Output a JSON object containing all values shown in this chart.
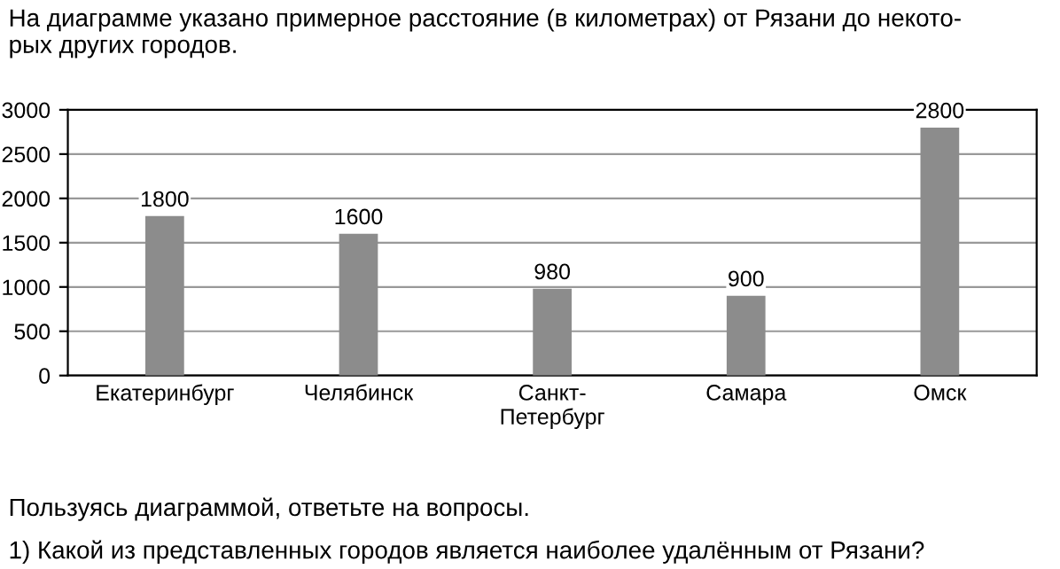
{
  "chart_data": {
    "type": "bar",
    "title": "На диаграмме указано примерное расстояние (в километрах) от Рязани до некото-\nрых других городов.",
    "categories": [
      "Екатеринбург",
      "Челябинск",
      "Санкт-\nПетербург",
      "Самара",
      "Омск"
    ],
    "values": [
      1800,
      1600,
      980,
      900,
      2800
    ],
    "color": "#8c8c8c",
    "ylim": [
      0,
      3000
    ],
    "yticks": [
      0,
      500,
      1000,
      1500,
      2000,
      2500,
      3000
    ],
    "grid": "y",
    "data_labels": true,
    "annotations": [
      "Пользуясь диаграммой, ответьте на вопросы.",
      "1) Какой из представленных городов является наиболее удалённым от Рязани?"
    ]
  }
}
